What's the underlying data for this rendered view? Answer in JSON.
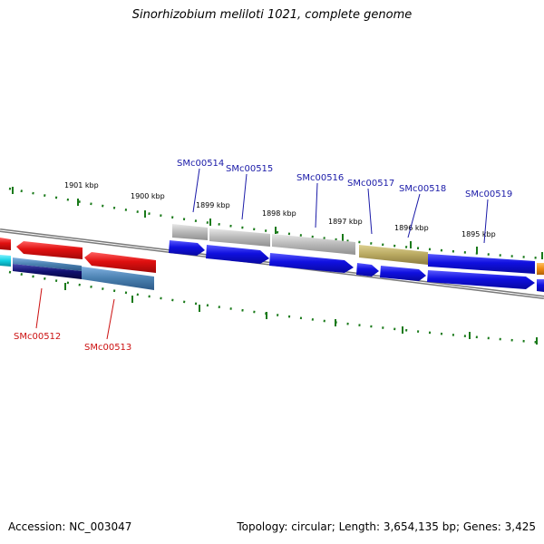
{
  "title": "Sinorhizobium meliloti 1021, complete genome",
  "footer": {
    "accession_label": "Accession:",
    "accession": "NC_003047",
    "topology_label": "Topology:",
    "topology": "circular",
    "length_label": "Length:",
    "length": "3,654,135 bp",
    "genes_label": "Genes:",
    "genes": "3,425"
  },
  "ruler_labels": [
    "1901 kbp",
    "1900 kbp",
    "1899 kbp",
    "1898 kbp",
    "1897 kbp",
    "1896 kbp",
    "1895 kbp"
  ],
  "gene_labels": {
    "forward": [
      "SMc00514",
      "SMc00515",
      "SMc00516",
      "SMc00517",
      "SMc00518",
      "SMc00519"
    ],
    "reverse": [
      "SMc00512",
      "SMc00513"
    ]
  },
  "colors": {
    "forward_label": "#1a1aa8",
    "reverse_label": "#cc1111",
    "gene_blue": "#1010e0",
    "gene_red": "#e01010",
    "gene_cyan": "#10d0e0",
    "gene_navy": "#101070",
    "gene_steel": "#4a80b0",
    "gene_grey": "#b8b8b8",
    "gene_olive": "#b8a860",
    "gene_orange": "#f08a10",
    "backbone": "#7a7a7a",
    "ticks": "#1a7a1a"
  }
}
